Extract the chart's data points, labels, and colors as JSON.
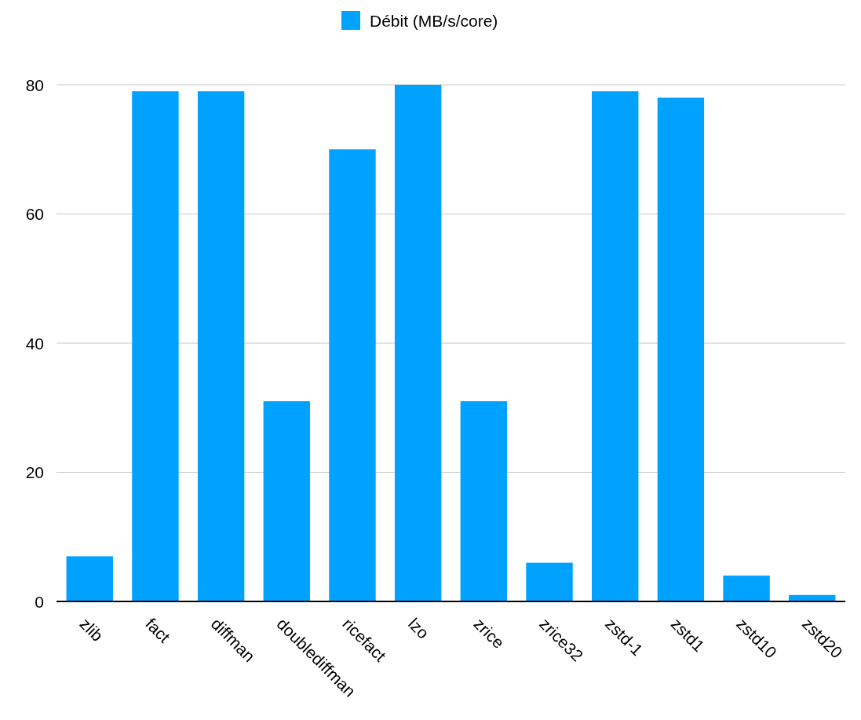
{
  "chart_data": {
    "type": "bar",
    "categories": [
      "zlib",
      "fact",
      "diffman",
      "doublediffman",
      "ricefact",
      "lzo",
      "zrice",
      "zrice32",
      "zstd-1",
      "zstd1",
      "zstd10",
      "zstd20"
    ],
    "series": [
      {
        "name": "Débit (MB/s/core)",
        "color": "#00a2ff",
        "values": [
          7,
          79,
          79,
          31,
          70,
          80,
          31,
          6,
          79,
          78,
          4,
          1
        ]
      }
    ],
    "ylim": [
      0,
      80
    ],
    "yticks": [
      0,
      20,
      40,
      60,
      80
    ],
    "grid": "y",
    "legend": "top"
  }
}
